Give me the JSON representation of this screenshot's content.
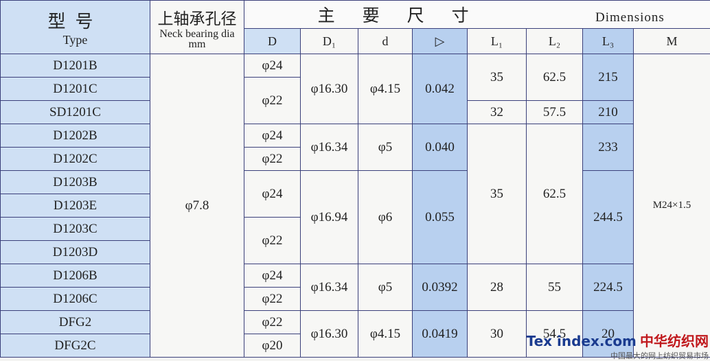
{
  "table": {
    "header": {
      "type_cn": "型号",
      "type_en": "Type",
      "neck_cn": "上轴承孔径",
      "neck_en": "Neck bearing dia mm",
      "dims_cn": "主要尺寸",
      "dims_en": "Dimensions"
    },
    "columns": [
      "D",
      "D₁",
      "d",
      "▷",
      "L₁",
      "L₂",
      "L₃",
      "M"
    ],
    "types": [
      "D1201B",
      "D1201C",
      "SD1201C",
      "D1202B",
      "D1202C",
      "D1203B",
      "D1203E",
      "D1203C",
      "D1203D",
      "D1206B",
      "D1206C",
      "DFG2",
      "DFG2C"
    ],
    "neck": "φ7.8",
    "D": [
      "φ24",
      "φ22",
      "φ24",
      "φ22",
      "φ24",
      "φ22",
      "φ24",
      "φ22",
      "φ22",
      "φ20"
    ],
    "D1": [
      "φ16.30",
      "φ16.34",
      "φ16.94",
      "φ16.34",
      "φ16.30"
    ],
    "d": [
      "φ4.15",
      "φ5",
      "φ6",
      "φ5",
      "φ4.15"
    ],
    "taper": [
      "0.042",
      "0.040",
      "0.055",
      "0.0392",
      "0.0419"
    ],
    "L1": [
      "35",
      "32",
      "35",
      "28",
      "30"
    ],
    "L2": [
      "62.5",
      "57.5",
      "62.5",
      "55",
      "54.5"
    ],
    "L3": [
      "215",
      "210",
      "233",
      "244.5",
      "224.5",
      "20"
    ],
    "M": "M24×1.5"
  },
  "watermark": {
    "logo": "Tex index.com",
    "name": "中华纺织网",
    "slogan": "中国最大的网上纺织贸易市场"
  }
}
